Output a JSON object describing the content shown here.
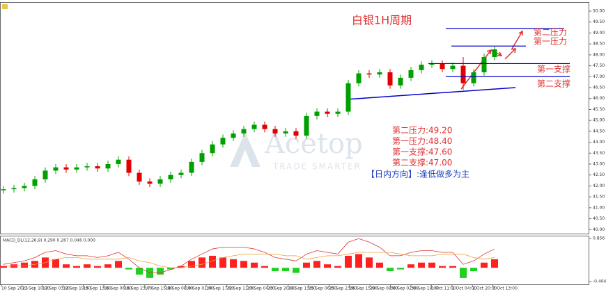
{
  "chart_data": {
    "type": "candlestick",
    "title": "白银1H周期",
    "up_color": "#00a000",
    "down_color": "#e00000",
    "open": [
      41.8,
      41.85,
      41.9,
      42.0,
      42.3,
      42.7,
      42.85,
      42.75,
      42.85,
      42.9,
      42.8,
      43.0,
      43.2,
      42.6,
      42.2,
      42.1,
      42.3,
      42.5,
      42.6,
      43.1,
      43.5,
      43.9,
      44.2,
      44.4,
      44.6,
      44.8,
      44.6,
      44.4,
      44.5,
      44.3,
      45.2,
      45.4,
      45.3,
      45.4,
      46.7,
      47.15,
      47.1,
      47.2,
      46.6,
      46.95,
      47.3,
      47.55,
      47.6,
      47.35,
      47.5,
      46.7,
      47.2,
      47.9
    ],
    "high": [
      42.0,
      42.05,
      42.15,
      42.45,
      42.85,
      43.0,
      43.0,
      43.0,
      43.05,
      43.05,
      43.15,
      43.35,
      43.35,
      42.75,
      42.35,
      42.45,
      42.65,
      42.75,
      43.25,
      43.65,
      44.05,
      44.35,
      44.55,
      44.75,
      44.95,
      44.95,
      44.75,
      44.65,
      44.65,
      45.35,
      45.55,
      45.55,
      45.55,
      46.85,
      47.3,
      47.3,
      47.35,
      47.35,
      47.1,
      47.45,
      47.7,
      47.75,
      47.75,
      47.65,
      47.9,
      47.35,
      48.05,
      48.4
    ],
    "low": [
      41.65,
      41.7,
      41.75,
      41.85,
      42.15,
      42.55,
      42.6,
      42.6,
      42.7,
      42.65,
      42.65,
      42.85,
      42.45,
      42.05,
      41.95,
      41.95,
      42.15,
      42.35,
      42.45,
      42.95,
      43.35,
      43.75,
      44.05,
      44.25,
      44.45,
      44.45,
      44.25,
      44.25,
      44.15,
      44.15,
      45.05,
      45.15,
      45.15,
      45.25,
      46.55,
      46.95,
      46.95,
      46.45,
      46.45,
      46.8,
      47.15,
      47.4,
      47.2,
      47.2,
      46.4,
      46.55,
      47.05,
      47.75
    ],
    "close": [
      41.85,
      41.9,
      42.0,
      42.3,
      42.7,
      42.85,
      42.75,
      42.85,
      42.9,
      42.8,
      43.0,
      43.2,
      42.6,
      42.2,
      42.1,
      42.3,
      42.5,
      42.6,
      43.1,
      43.5,
      43.9,
      44.2,
      44.4,
      44.6,
      44.8,
      44.6,
      44.4,
      44.5,
      44.3,
      45.2,
      45.4,
      45.3,
      45.4,
      46.7,
      47.15,
      47.1,
      47.2,
      46.6,
      46.95,
      47.3,
      47.55,
      47.6,
      47.35,
      47.5,
      46.7,
      47.2,
      47.9,
      48.25
    ],
    "ylim": [
      39.85,
      50.35
    ],
    "yticks": [
      {
        "value": 40,
        "label": "40.00"
      },
      {
        "value": 40.5,
        "label": "40.50"
      },
      {
        "value": 41,
        "label": "41.00"
      },
      {
        "value": 41.5,
        "label": "41.50"
      },
      {
        "value": 42,
        "label": "42.00"
      },
      {
        "value": 42.5,
        "label": "42.50"
      },
      {
        "value": 43,
        "label": "43.00"
      },
      {
        "value": 43.5,
        "label": "43.50"
      },
      {
        "value": 44,
        "label": "44.00"
      },
      {
        "value": 44.5,
        "label": "44.50"
      },
      {
        "value": 45,
        "label": "45.00"
      },
      {
        "value": 45.5,
        "label": "45.50"
      },
      {
        "value": 46,
        "label": "46.00"
      },
      {
        "value": 46.5,
        "label": "46.50"
      },
      {
        "value": 47,
        "label": "47.00"
      },
      {
        "value": 47.5,
        "label": "47.50"
      },
      {
        "value": 48,
        "label": "48.00"
      },
      {
        "value": 48.5,
        "label": "48.50"
      },
      {
        "value": 49,
        "label": "49.00"
      },
      {
        "value": 49.5,
        "label": "49.50"
      },
      {
        "value": 50,
        "label": "50.00"
      }
    ],
    "x_labels": [
      "10 Sep 2025",
      "11 Sep 10:00",
      "12 Sep 03:00",
      "12 Sep 19:00",
      "15 Sep 13:00",
      "16 Sep 06:00",
      "16 Sep 23:00",
      "17 Sep 15:00",
      "18 Sep 08:00",
      "19 Sep 01:00",
      "19 Sep 17:00",
      "22 Sep 11:00",
      "23 Sep 04:00",
      "23 Sep 20:00",
      "24 Sep 13:00",
      "25 Sep 06:00",
      "25 Sep 23:00",
      "26 Sep 15:00",
      "29 Sep 08:00",
      "30 Sep 02:00",
      "30 Sep 18:00",
      "1 Oct 11:00",
      "2 Oct 04:00",
      "2 Oct 20:00",
      "3 Oct 13:00"
    ],
    "levels": [
      {
        "name": "第二压力",
        "value": 49.2,
        "color": "#0000cc"
      },
      {
        "name": "第一压力",
        "value": 48.4,
        "color": "#0000cc"
      },
      {
        "name": "第一支撑",
        "value": 47.6,
        "color": "#0000cc"
      },
      {
        "name": "第二支撑",
        "value": 47.0,
        "color": "#0000cc"
      }
    ],
    "level_notes": [
      "第二压力:49.20",
      "第一压力:48.40",
      "第一支撑:47.60",
      "第二支撑:47.00"
    ],
    "direction": "【日内方向】:逢低做多为主",
    "watermark": {
      "brand": "Acetop",
      "tagline": "TRADE SMARTER"
    },
    "macd": {
      "label": "MACD_DL(12,26,9) 0.290 0.267 0.046 0.000",
      "ylim": [
        -0.404,
        0.856
      ],
      "yticks": [
        0.856,
        -0.404
      ],
      "histogram": [
        0.05,
        0.1,
        0.15,
        0.2,
        0.3,
        0.25,
        0.1,
        0.05,
        0.1,
        0.05,
        0.1,
        0.2,
        -0.05,
        -0.2,
        -0.3,
        -0.2,
        -0.05,
        0.05,
        0.2,
        0.3,
        0.35,
        0.3,
        0.25,
        0.2,
        0.15,
        0.05,
        -0.1,
        -0.1,
        -0.15,
        0.15,
        0.2,
        0.1,
        0.05,
        0.35,
        0.4,
        0.3,
        0.15,
        -0.1,
        -0.05,
        0.1,
        0.15,
        0.15,
        0.05,
        0.05,
        -0.3,
        -0.1,
        0.15,
        0.25
      ],
      "pos_color": "#ff2020",
      "neg_color": "#20d020",
      "series": [
        {
          "color": "#e03030",
          "values": [
            0.1,
            0.15,
            0.2,
            0.3,
            0.45,
            0.5,
            0.4,
            0.35,
            0.35,
            0.3,
            0.35,
            0.45,
            0.25,
            0.0,
            -0.15,
            -0.15,
            -0.05,
            0.05,
            0.25,
            0.4,
            0.55,
            0.6,
            0.6,
            0.6,
            0.55,
            0.45,
            0.3,
            0.25,
            0.2,
            0.4,
            0.5,
            0.45,
            0.4,
            0.75,
            0.85,
            0.75,
            0.6,
            0.35,
            0.35,
            0.45,
            0.5,
            0.5,
            0.45,
            0.45,
            0.1,
            0.2,
            0.4,
            0.55
          ]
        },
        {
          "color": "#f0a040",
          "values": [
            0.05,
            0.05,
            0.05,
            0.1,
            0.15,
            0.25,
            0.3,
            0.3,
            0.25,
            0.25,
            0.25,
            0.25,
            0.3,
            0.2,
            0.15,
            0.05,
            0.0,
            0.0,
            0.05,
            0.1,
            0.2,
            0.3,
            0.35,
            0.4,
            0.4,
            0.4,
            0.4,
            0.35,
            0.35,
            0.25,
            0.3,
            0.35,
            0.35,
            0.4,
            0.45,
            0.45,
            0.45,
            0.45,
            0.4,
            0.35,
            0.35,
            0.35,
            0.4,
            0.4,
            0.4,
            0.3,
            0.25,
            0.3
          ]
        }
      ]
    }
  }
}
